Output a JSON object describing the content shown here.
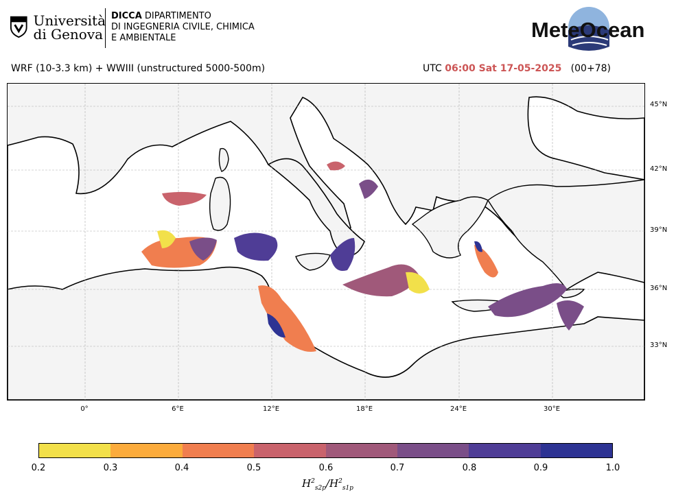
{
  "header": {
    "university_line1": "Università",
    "university_line2": "di Genova",
    "dept_bold": "DICCA",
    "dept_line1": "DIPARTIMENTO",
    "dept_line2": "DI INGEGNERIA CIVILE, CHIMICA",
    "dept_line3": "E AMBIENTALE",
    "brand": "MeteOcean",
    "model_title": "WRF (10-3.3 km) + WWIII (unstructured 5000-500m)",
    "utc_prefix": "UTC",
    "utc_time": "06:00 Sat 17-05-2025",
    "forecast_step": "(00+78)"
  },
  "map": {
    "lat_labels": [
      "45°N",
      "42°N",
      "39°N",
      "36°N",
      "33°N"
    ],
    "lon_labels": [
      "0°",
      "6°E",
      "12°E",
      "18°E",
      "24°E",
      "30°E"
    ],
    "land_color": "#f4f4f4",
    "sea_color": "#ffffff"
  },
  "colorbar": {
    "ticks": [
      "0.2",
      "0.3",
      "0.4",
      "0.5",
      "0.6",
      "0.7",
      "0.8",
      "0.9",
      "1.0"
    ],
    "colors": [
      "#f2e04a",
      "#fbab3c",
      "#f07e4f",
      "#c9636c",
      "#a0597a",
      "#7a4e88",
      "#4f3d96",
      "#2d3393",
      "#0e2a4f"
    ],
    "label_main": "H",
    "label_sub_a": "s2p",
    "label_sub_b": "s1p",
    "label_sup": "2"
  }
}
